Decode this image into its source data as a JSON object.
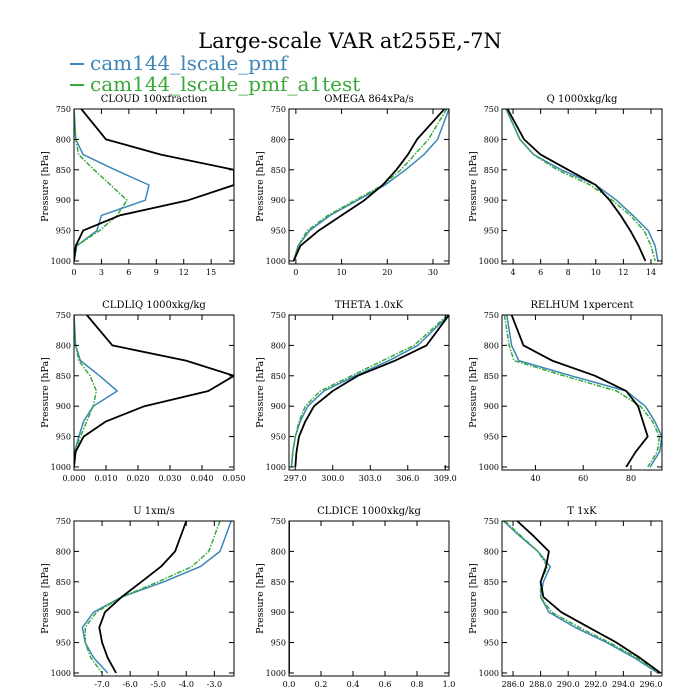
{
  "title": "Large-scale VAR at255E,-7N",
  "legend": [
    {
      "label": "cam144_lscale_pmf",
      "color": "#3a87b8"
    },
    {
      "label": "cam144_lscale_pmf_a1test",
      "color": "#3aa93a"
    }
  ],
  "colors": {
    "series_0": "#3a87b8",
    "series_1": "#3aa93a",
    "series_2": "#000000"
  },
  "chart_data": [
    {
      "type": "line",
      "title": "CLOUD  100xfraction",
      "ylabel": "Pressure [hPa]",
      "xlim": [
        0,
        17.5
      ],
      "ylim": [
        1005,
        750
      ],
      "xticks": [
        0,
        3,
        6,
        9,
        12,
        15
      ],
      "xtick_labels": [
        "0",
        "3",
        "6",
        "9",
        "12",
        "15"
      ],
      "yticks": [
        750,
        800,
        850,
        900,
        950,
        1000
      ],
      "ytick_labels": [
        "750",
        "800",
        "850",
        "900",
        "950",
        "1000"
      ],
      "y": [
        750,
        800,
        825,
        850,
        875,
        900,
        925,
        950,
        975,
        1000
      ],
      "series": [
        {
          "values": [
            0,
            0.2,
            1.0,
            4.5,
            8.2,
            7.8,
            3.0,
            2.5,
            0.3,
            0
          ]
        },
        {
          "values": [
            0,
            0.2,
            0.5,
            2.2,
            4.0,
            5.8,
            4.7,
            2.8,
            0.3,
            0
          ]
        },
        {
          "values": [
            0.8,
            3.5,
            9.5,
            17.5,
            17.5,
            12.5,
            5.0,
            1.0,
            0.2,
            0
          ]
        }
      ]
    },
    {
      "type": "line",
      "title": "OMEGA  864xPa/s",
      "ylabel": "Pressure [hPa]",
      "xlim": [
        -1.5,
        33.5
      ],
      "ylim": [
        1005,
        750
      ],
      "xticks": [
        0,
        10,
        20,
        30
      ],
      "xtick_labels": [
        "0",
        "10",
        "20",
        "30"
      ],
      "yticks": [
        750,
        800,
        850,
        900,
        950,
        1000
      ],
      "ytick_labels": [
        "750",
        "800",
        "850",
        "900",
        "950",
        "1000"
      ],
      "y": [
        750,
        800,
        825,
        850,
        875,
        900,
        925,
        950,
        975,
        1000
      ],
      "series": [
        {
          "values": [
            33.5,
            31.0,
            28.0,
            24.0,
            19.5,
            13.5,
            7.5,
            3.0,
            0.5,
            -0.5
          ]
        },
        {
          "values": [
            33.0,
            29.0,
            26.0,
            23.0,
            19.0,
            13.0,
            7.0,
            2.5,
            0.5,
            -0.5
          ]
        },
        {
          "values": [
            32.5,
            26.5,
            24.5,
            22.0,
            19.0,
            15.0,
            10.0,
            5.0,
            1.0,
            -0.5
          ]
        }
      ]
    },
    {
      "type": "line",
      "title": "Q  1000xkg/kg",
      "ylabel": "Pressure [hPa]",
      "xlim": [
        3.2,
        14.8
      ],
      "ylim": [
        1005,
        750
      ],
      "xticks": [
        4,
        6,
        8,
        10,
        12,
        14
      ],
      "xtick_labels": [
        "4",
        "6",
        "8",
        "10",
        "12",
        "14"
      ],
      "yticks": [
        750,
        800,
        850,
        900,
        950,
        1000
      ],
      "ytick_labels": [
        "750",
        "800",
        "850",
        "900",
        "950",
        "1000"
      ],
      "y": [
        750,
        800,
        825,
        850,
        875,
        900,
        925,
        950,
        975,
        1000
      ],
      "series": [
        {
          "values": [
            3.5,
            4.5,
            5.5,
            7.5,
            10.0,
            11.5,
            12.7,
            13.8,
            14.3,
            14.5
          ]
        },
        {
          "values": [
            3.5,
            4.5,
            5.5,
            7.2,
            9.6,
            11.2,
            12.5,
            13.5,
            14.0,
            14.3
          ]
        },
        {
          "values": [
            3.6,
            4.8,
            6.0,
            8.0,
            10.0,
            11.0,
            11.8,
            12.5,
            13.1,
            13.6
          ]
        }
      ]
    },
    {
      "type": "line",
      "title": "CLDLIQ  1000xkg/kg",
      "ylabel": "Pressure [hPa]",
      "xlim": [
        0,
        0.05
      ],
      "ylim": [
        1005,
        750
      ],
      "xticks": [
        0,
        0.01,
        0.02,
        0.03,
        0.04,
        0.05
      ],
      "xtick_labels": [
        "0.000",
        "0.010",
        "0.020",
        "0.030",
        "0.040",
        "0.050"
      ],
      "yticks": [
        750,
        800,
        850,
        900,
        950,
        1000
      ],
      "ytick_labels": [
        "750",
        "800",
        "850",
        "900",
        "950",
        "1000"
      ],
      "y": [
        750,
        800,
        825,
        850,
        875,
        900,
        925,
        950,
        975,
        1000
      ],
      "series": [
        {
          "values": [
            0,
            0.0005,
            0.002,
            0.008,
            0.0135,
            0.006,
            0.003,
            0.0015,
            0.0002,
            0
          ]
        },
        {
          "values": [
            0,
            0.0005,
            0.0015,
            0.005,
            0.007,
            0.006,
            0.004,
            0.002,
            0.0003,
            0
          ]
        },
        {
          "values": [
            0.004,
            0.012,
            0.035,
            0.05,
            0.042,
            0.022,
            0.01,
            0.003,
            0.0005,
            0
          ]
        }
      ]
    },
    {
      "type": "line",
      "title": "THETA  1.0xK",
      "ylabel": "Pressure [hPa]",
      "xlim": [
        296.5,
        309.3
      ],
      "ylim": [
        1005,
        750
      ],
      "xticks": [
        297,
        300,
        303,
        306,
        309
      ],
      "xtick_labels": [
        "297.0",
        "300.0",
        "303.0",
        "306.0",
        "309.0"
      ],
      "yticks": [
        750,
        800,
        850,
        900,
        950,
        1000
      ],
      "ytick_labels": [
        "750",
        "800",
        "850",
        "900",
        "950",
        "1000"
      ],
      "y": [
        750,
        800,
        825,
        850,
        875,
        900,
        925,
        950,
        975,
        1000
      ],
      "series": [
        {
          "values": [
            309.3,
            306.8,
            304.5,
            301.8,
            299.3,
            298.0,
            297.4,
            297.0,
            296.8,
            296.7
          ]
        },
        {
          "values": [
            309.2,
            306.5,
            304.0,
            301.5,
            299.0,
            297.8,
            297.3,
            297.0,
            296.8,
            296.7
          ]
        },
        {
          "values": [
            309.3,
            307.5,
            305.0,
            302.0,
            300.0,
            298.5,
            297.8,
            297.3,
            297.1,
            297.0
          ]
        }
      ]
    },
    {
      "type": "line",
      "title": "RELHUM  1xpercent",
      "ylabel": "Pressure [hPa]",
      "xlim": [
        26,
        93
      ],
      "ylim": [
        1005,
        750
      ],
      "xticks": [
        40,
        60,
        80
      ],
      "xtick_labels": [
        "40",
        "60",
        "80"
      ],
      "yticks": [
        750,
        800,
        850,
        900,
        950,
        1000
      ],
      "ytick_labels": [
        "750",
        "800",
        "850",
        "900",
        "950",
        "1000"
      ],
      "y": [
        750,
        800,
        825,
        850,
        875,
        900,
        925,
        950,
        975,
        1000
      ],
      "series": [
        {
          "values": [
            28,
            30,
            33,
            55,
            78,
            86,
            90,
            93,
            92,
            88
          ]
        },
        {
          "values": [
            27,
            29,
            31,
            52,
            74,
            84,
            89,
            92,
            91,
            87
          ]
        },
        {
          "values": [
            30,
            35,
            47,
            65,
            78,
            83,
            85,
            87,
            82,
            78
          ]
        }
      ]
    },
    {
      "type": "line",
      "title": "U  1xm/s",
      "ylabel": "Pressure [hPa]",
      "xlim": [
        -8.0,
        -2.3
      ],
      "ylim": [
        1005,
        750
      ],
      "xticks": [
        -7,
        -6,
        -5,
        -4,
        -3
      ],
      "xtick_labels": [
        "-7.0",
        "-6.0",
        "-5.0",
        "-4.0",
        "-3.0"
      ],
      "yticks": [
        750,
        800,
        850,
        900,
        950,
        1000
      ],
      "ytick_labels": [
        "750",
        "800",
        "850",
        "900",
        "950",
        "1000"
      ],
      "y": [
        750,
        800,
        825,
        850,
        875,
        900,
        925,
        950,
        975,
        1000
      ],
      "series": [
        {
          "values": [
            -2.4,
            -2.8,
            -3.5,
            -4.8,
            -6.3,
            -7.3,
            -7.7,
            -7.6,
            -7.3,
            -6.8
          ]
        },
        {
          "values": [
            -2.8,
            -3.2,
            -3.8,
            -5.0,
            -6.3,
            -7.2,
            -7.6,
            -7.6,
            -7.4,
            -7.0
          ]
        },
        {
          "values": [
            -4.0,
            -4.4,
            -4.9,
            -5.6,
            -6.3,
            -6.9,
            -7.1,
            -7.0,
            -6.8,
            -6.5
          ]
        }
      ]
    },
    {
      "type": "line",
      "title": "CLDICE  1000xkg/kg",
      "ylabel": "Pressure [hPa]",
      "xlim": [
        0,
        1
      ],
      "ylim": [
        1005,
        750
      ],
      "xticks": [
        0,
        0.2,
        0.4,
        0.6,
        0.8,
        1.0
      ],
      "xtick_labels": [
        "0.0",
        "0.2",
        "0.4",
        "0.6",
        "0.8",
        "1.0"
      ],
      "yticks": [
        750,
        800,
        850,
        900,
        950,
        1000
      ],
      "ytick_labels": [
        "750",
        "800",
        "850",
        "900",
        "950",
        "1000"
      ],
      "y": [
        750,
        800,
        850,
        900,
        950,
        1000
      ],
      "series": [
        {
          "values": [
            0,
            0,
            0,
            0,
            0,
            0
          ]
        },
        {
          "values": [
            0,
            0,
            0,
            0,
            0,
            0
          ]
        },
        {
          "values": [
            0,
            0,
            0,
            0,
            0,
            0
          ]
        }
      ]
    },
    {
      "type": "line",
      "title": "T  1xK",
      "ylabel": "Pressure [hPa]",
      "xlim": [
        285.2,
        296.8
      ],
      "ylim": [
        1005,
        750
      ],
      "xticks": [
        286,
        288,
        290,
        292,
        294,
        296
      ],
      "xtick_labels": [
        "286.0",
        "288.0",
        "290.0",
        "292.0",
        "294.0",
        "296.0"
      ],
      "yticks": [
        750,
        800,
        850,
        900,
        950,
        1000
      ],
      "ytick_labels": [
        "750",
        "800",
        "850",
        "900",
        "950",
        "1000"
      ],
      "y": [
        750,
        775,
        800,
        825,
        850,
        875,
        900,
        925,
        950,
        975,
        1000
      ],
      "series": [
        {
          "values": [
            285.3,
            286.5,
            287.8,
            288.7,
            288.2,
            288.0,
            288.6,
            290.5,
            292.8,
            294.8,
            296.5
          ]
        },
        {
          "values": [
            285.4,
            286.6,
            287.8,
            288.5,
            288.0,
            288.0,
            288.8,
            290.8,
            293.0,
            295.0,
            296.6
          ]
        },
        {
          "values": [
            286.3,
            287.5,
            288.6,
            288.4,
            288.0,
            288.2,
            289.5,
            291.5,
            293.5,
            295.2,
            296.7
          ]
        }
      ]
    }
  ]
}
